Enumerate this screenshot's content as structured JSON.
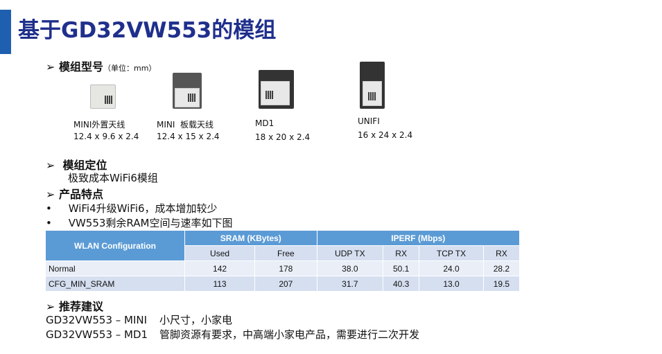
{
  "title": "基于GD32VW553的模组",
  "models": {
    "heading": "模组型号",
    "unit": "（单位：mm）",
    "items": [
      {
        "name": "MINI外置天线",
        "size": "12.4 x 9.6 x 2.4"
      },
      {
        "name": "MINI  板载天线",
        "size": "12.4 x 15 x 2.4"
      },
      {
        "name": "MD1",
        "size": "18 x 20 x 2.4"
      },
      {
        "name": "UNIFI",
        "size": "16 x 24 x 2.4"
      }
    ]
  },
  "positioning": {
    "heading": "模组定位",
    "text": "极致成本WiFi6模组"
  },
  "features": {
    "heading": "产品特点",
    "bullets": [
      "WiFi4升级WiFi6，成本增加较少",
      "VW553剩余RAM空间与速率如下图"
    ]
  },
  "table": {
    "config_header": "WLAN Configuration",
    "sram_header": "SRAM (KBytes)",
    "iperf_header": "IPERF (Mbps)",
    "sub": [
      "Used",
      "Free",
      "UDP TX",
      "RX",
      "TCP TX",
      "RX"
    ],
    "rows": [
      [
        "Normal",
        "142",
        "178",
        "38.0",
        "50.1",
        "24.0",
        "28.2"
      ],
      [
        "CFG_MIN_SRAM",
        "113",
        "207",
        "31.7",
        "40.3",
        "13.0",
        "19.5"
      ]
    ]
  },
  "recommend": {
    "heading": "推荐建议",
    "lines": [
      {
        "model": "GD32VW553 – MINI",
        "text": "小尺寸，小家电"
      },
      {
        "model": "GD32VW553 – MD1",
        "text": "管脚资源有要求，中高端小家电产品，需要进行二次开发"
      }
    ]
  },
  "colors": {
    "title": "#1f2f8c",
    "accent": "#1f5fb0",
    "table_header": "#5b9bd5"
  }
}
